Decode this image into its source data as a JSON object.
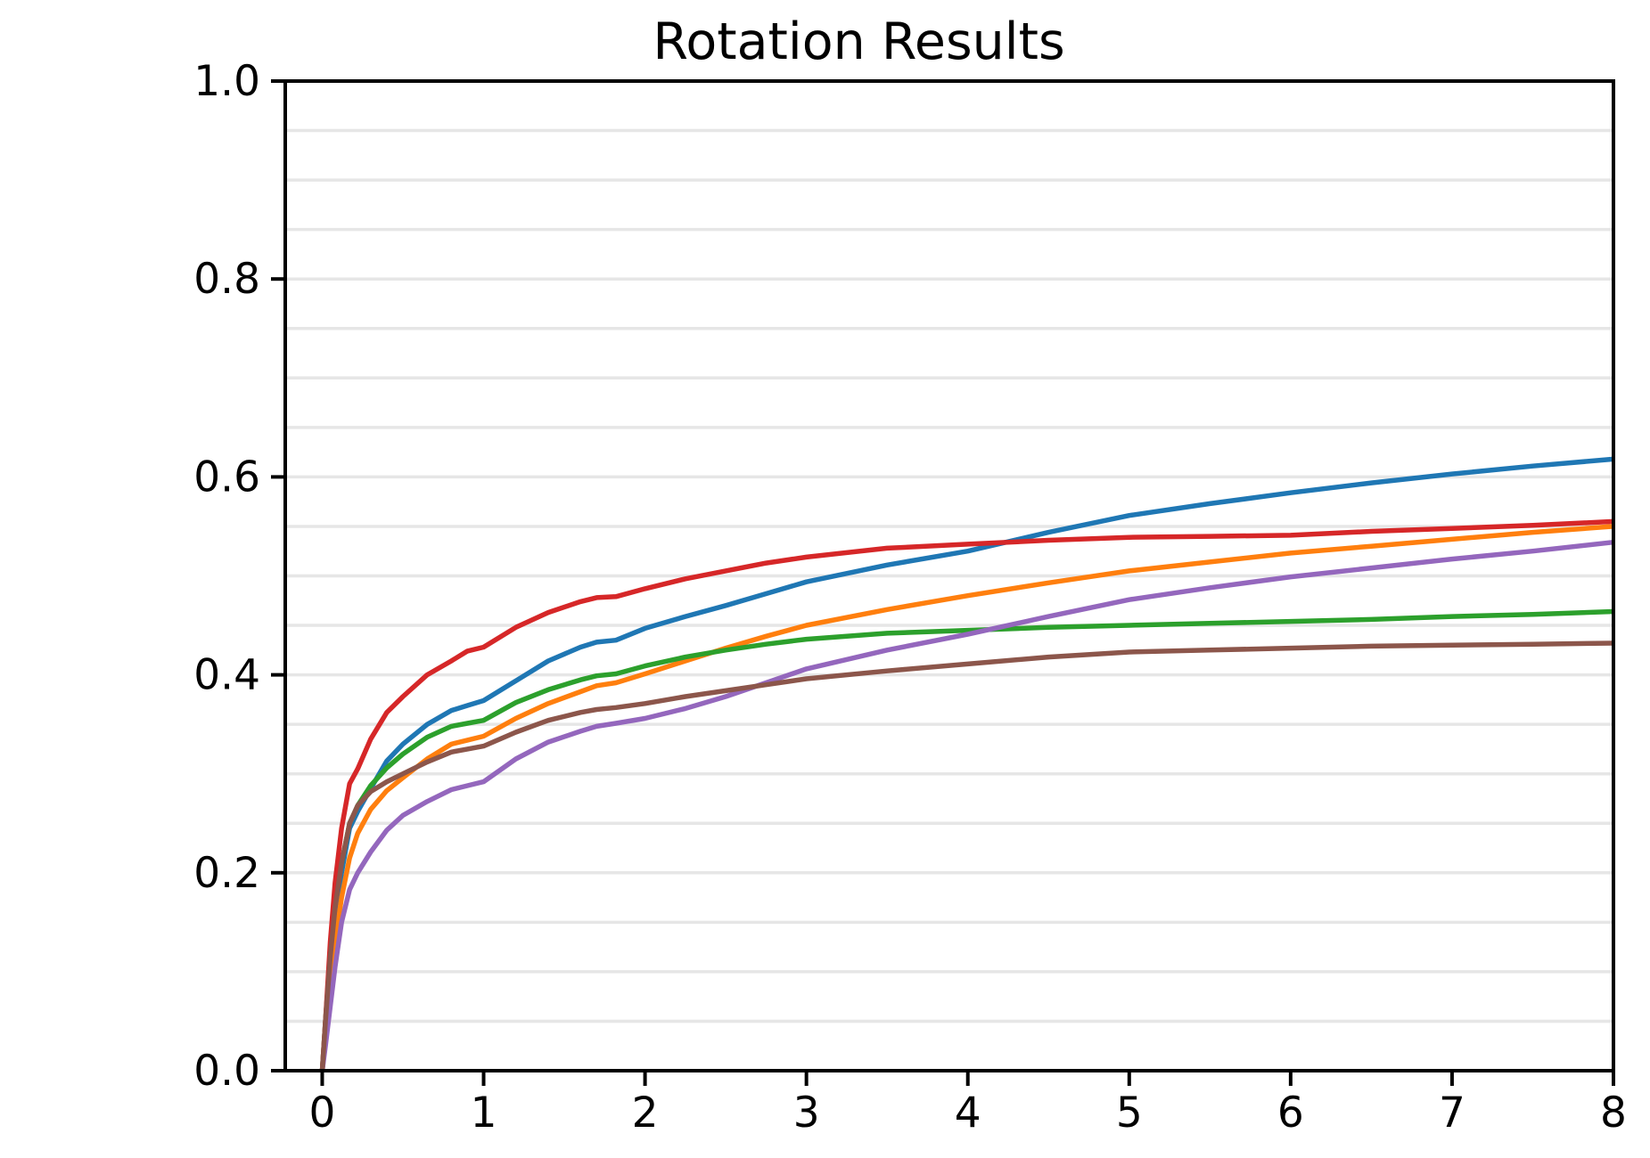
{
  "chart_data": {
    "type": "line",
    "title": "Rotation Results",
    "xlabel": "",
    "ylabel": "",
    "xlim": [
      -0.229,
      8
    ],
    "ylim": [
      0,
      1
    ],
    "x_ticks": [
      0,
      1,
      2,
      3,
      4,
      5,
      6,
      7,
      8
    ],
    "x_tick_labels": [
      "0",
      "1",
      "2",
      "3",
      "4",
      "5",
      "6",
      "7",
      "8"
    ],
    "y_ticks": [
      0.0,
      0.2,
      0.4,
      0.6,
      0.8,
      1.0
    ],
    "y_tick_labels": [
      "0.0",
      "0.2",
      "0.4",
      "0.6",
      "0.8",
      "1.0"
    ],
    "grid": {
      "axis": "y",
      "interval": 0.05,
      "color": "#e6e6e6",
      "on": true
    },
    "legend": {
      "visible": false
    },
    "background_color": "#ffffff",
    "spine_color": "#000000",
    "tick_color": "#000000",
    "x": [
      0,
      0.02,
      0.05,
      0.08,
      0.12,
      0.17,
      0.22,
      0.3,
      0.4,
      0.5,
      0.65,
      0.8,
      0.9,
      1.0,
      1.2,
      1.4,
      1.6,
      1.7,
      1.82,
      2.0,
      2.25,
      2.5,
      2.75,
      3.0,
      3.5,
      4.0,
      4.5,
      5.0,
      5.5,
      6.0,
      6.5,
      7.0,
      7.5,
      8.0
    ],
    "series": [
      {
        "name": "blue",
        "color": "#1f77b4",
        "values": [
          0,
          0.04,
          0.1,
          0.15,
          0.2,
          0.245,
          0.262,
          0.285,
          0.313,
          0.33,
          0.35,
          0.364,
          0.369,
          0.374,
          0.394,
          0.414,
          0.428,
          0.433,
          0.435,
          0.447,
          0.459,
          0.47,
          0.482,
          0.494,
          0.511,
          0.525,
          0.544,
          0.561,
          0.573,
          0.584,
          0.594,
          0.603,
          0.611,
          0.618
        ]
      },
      {
        "name": "orange",
        "color": "#ff7f0e",
        "values": [
          0,
          0.03,
          0.08,
          0.13,
          0.175,
          0.215,
          0.24,
          0.264,
          0.283,
          0.296,
          0.315,
          0.33,
          0.334,
          0.338,
          0.356,
          0.371,
          0.383,
          0.389,
          0.392,
          0.401,
          0.414,
          0.427,
          0.439,
          0.45,
          0.466,
          0.48,
          0.493,
          0.505,
          0.514,
          0.523,
          0.53,
          0.537,
          0.544,
          0.55
        ]
      },
      {
        "name": "green",
        "color": "#2ca02c",
        "values": [
          0,
          0.05,
          0.12,
          0.17,
          0.21,
          0.25,
          0.268,
          0.288,
          0.306,
          0.32,
          0.337,
          0.348,
          0.351,
          0.354,
          0.372,
          0.385,
          0.395,
          0.399,
          0.401,
          0.409,
          0.418,
          0.425,
          0.431,
          0.436,
          0.442,
          0.445,
          0.448,
          0.45,
          0.452,
          0.454,
          0.456,
          0.459,
          0.461,
          0.464
        ]
      },
      {
        "name": "red",
        "color": "#d62728",
        "values": [
          0,
          0.05,
          0.13,
          0.19,
          0.245,
          0.29,
          0.305,
          0.335,
          0.362,
          0.378,
          0.4,
          0.414,
          0.424,
          0.428,
          0.448,
          0.463,
          0.474,
          0.478,
          0.479,
          0.487,
          0.497,
          0.505,
          0.513,
          0.519,
          0.528,
          0.532,
          0.536,
          0.539,
          0.54,
          0.541,
          0.545,
          0.548,
          0.551,
          0.555
        ]
      },
      {
        "name": "purple",
        "color": "#9467bd",
        "values": [
          0,
          0.025,
          0.065,
          0.105,
          0.15,
          0.183,
          0.2,
          0.221,
          0.243,
          0.258,
          0.272,
          0.284,
          0.288,
          0.292,
          0.315,
          0.332,
          0.343,
          0.348,
          0.351,
          0.356,
          0.366,
          0.378,
          0.392,
          0.406,
          0.425,
          0.441,
          0.459,
          0.476,
          0.488,
          0.499,
          0.508,
          0.517,
          0.525,
          0.534
        ]
      },
      {
        "name": "brown",
        "color": "#8c564b",
        "values": [
          0,
          0.05,
          0.115,
          0.165,
          0.21,
          0.25,
          0.268,
          0.282,
          0.292,
          0.3,
          0.312,
          0.322,
          0.325,
          0.328,
          0.342,
          0.354,
          0.362,
          0.365,
          0.367,
          0.371,
          0.378,
          0.384,
          0.39,
          0.396,
          0.404,
          0.411,
          0.418,
          0.423,
          0.425,
          0.427,
          0.429,
          0.43,
          0.431,
          0.432
        ]
      }
    ]
  }
}
